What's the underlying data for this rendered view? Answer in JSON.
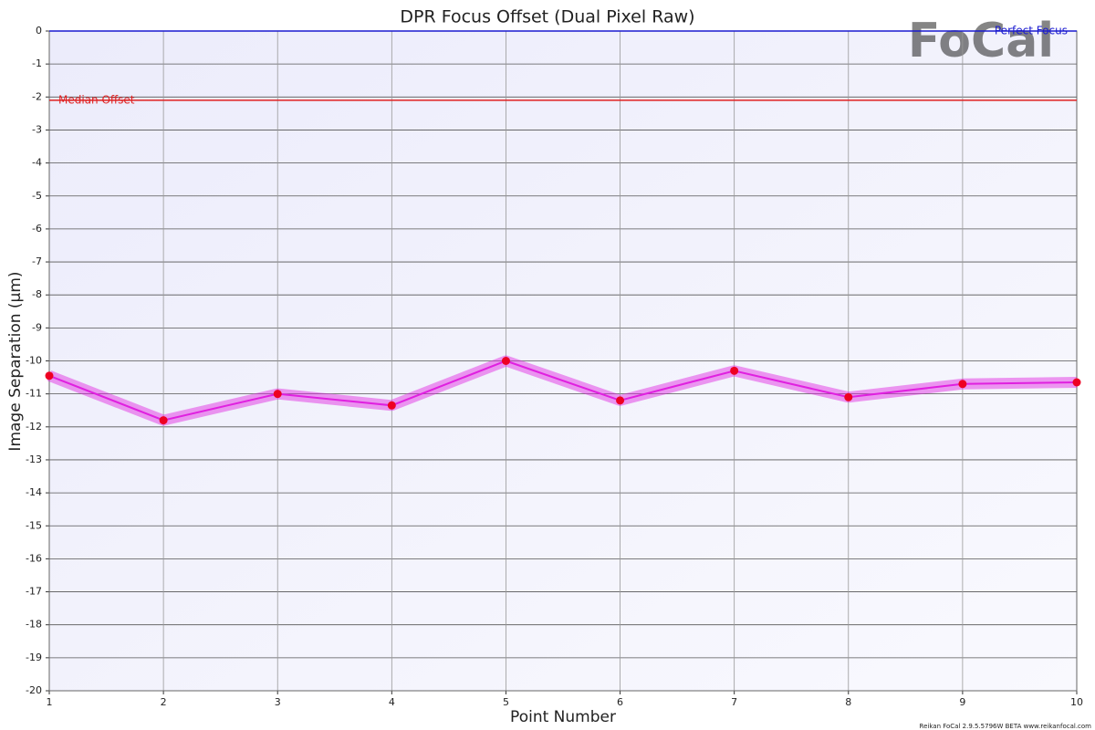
{
  "chart_data": {
    "type": "line",
    "title": "DPR Focus Offset (Dual Pixel Raw)",
    "xlabel": "Point Number",
    "ylabel": "Image Separation (µm)",
    "x": [
      1,
      2,
      3,
      4,
      5,
      6,
      7,
      8,
      9,
      10
    ],
    "series": [
      {
        "color": "#e020e0",
        "marker_color": "#ee0022",
        "values": [
          -10.45,
          -11.8,
          -11.0,
          -11.35,
          -10.0,
          -11.2,
          -10.3,
          -11.1,
          -10.7,
          -10.65
        ]
      }
    ],
    "xlim": [
      1,
      10
    ],
    "xticks": [
      1,
      2,
      3,
      4,
      5,
      6,
      7,
      8,
      9,
      10
    ],
    "ylim": [
      -20,
      0
    ],
    "yticks": [
      0,
      -1,
      -2,
      -3,
      -4,
      -5,
      -6,
      -7,
      -8,
      -9,
      -10,
      -11,
      -12,
      -13,
      -14,
      -15,
      -16,
      -17,
      -18,
      -19,
      -20
    ],
    "grid": true,
    "reference_lines": [
      {
        "label": "Median Offset",
        "value": -2.1,
        "color": "#e02020"
      },
      {
        "label": "Perfect Focus",
        "value": 0,
        "color": "#1a1ad0"
      }
    ]
  },
  "logo": "FoCal",
  "footer": "Reikan FoCal 2.9.5.5796W BETA  www.reikanfocal.com"
}
